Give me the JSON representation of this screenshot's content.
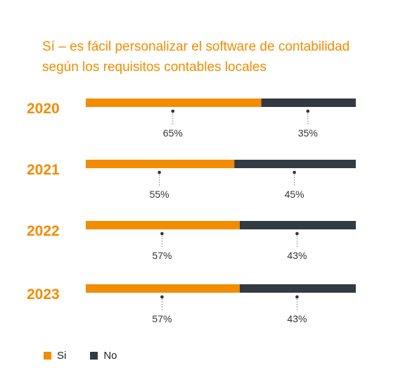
{
  "title_line1": "Sí – es fácil personalizar el software de contabilidad",
  "title_line2": "según los requisitos contables locales",
  "colors": {
    "si": "#f28c00",
    "no": "#323a43",
    "year": "#f28c00",
    "label": "#333333"
  },
  "chart_data": {
    "type": "bar",
    "stacked": true,
    "orientation": "horizontal",
    "categories": [
      "2020",
      "2021",
      "2022",
      "2023"
    ],
    "series": [
      {
        "name": "Si",
        "values": [
          65,
          55,
          57,
          57
        ],
        "labels": [
          "65%",
          "55%",
          "57%",
          "57%"
        ]
      },
      {
        "name": "No",
        "values": [
          35,
          45,
          43,
          43
        ],
        "labels": [
          "35%",
          "45%",
          "43%",
          "43%"
        ]
      }
    ],
    "xlim": [
      0,
      100
    ],
    "legend": "bottom-left"
  },
  "legend": {
    "si_label": "Si",
    "no_label": "No"
  }
}
